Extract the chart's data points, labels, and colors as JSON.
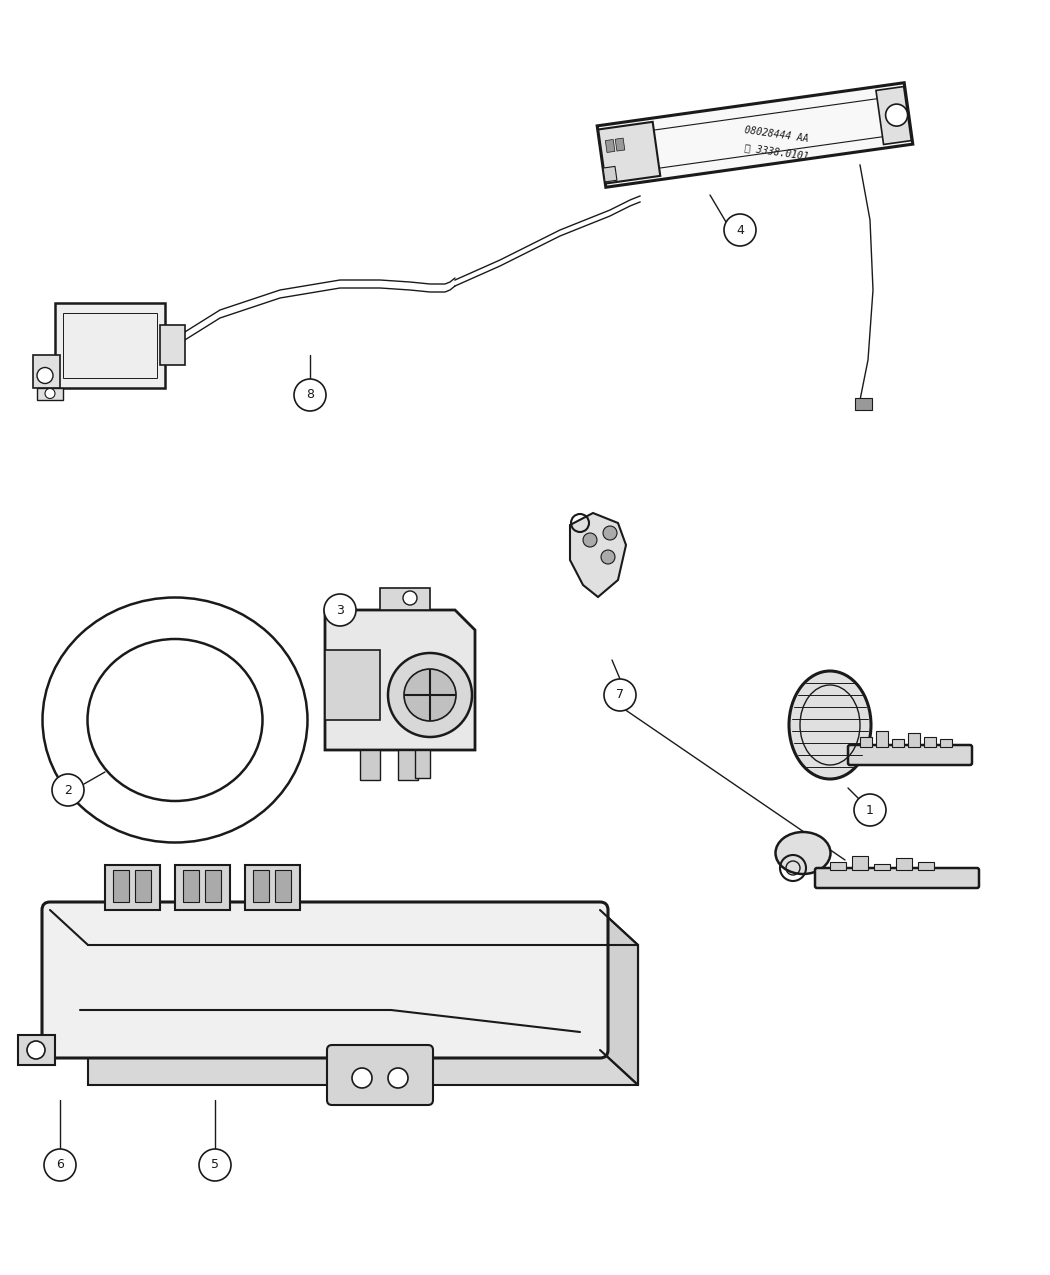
{
  "bg_color": "#ffffff",
  "line_color": "#1a1a1a",
  "fig_width": 10.5,
  "fig_height": 12.75,
  "dpi": 100,
  "fob_text1": "08028444 AA",
  "fob_text2": "Ⓜ 3338.0101"
}
